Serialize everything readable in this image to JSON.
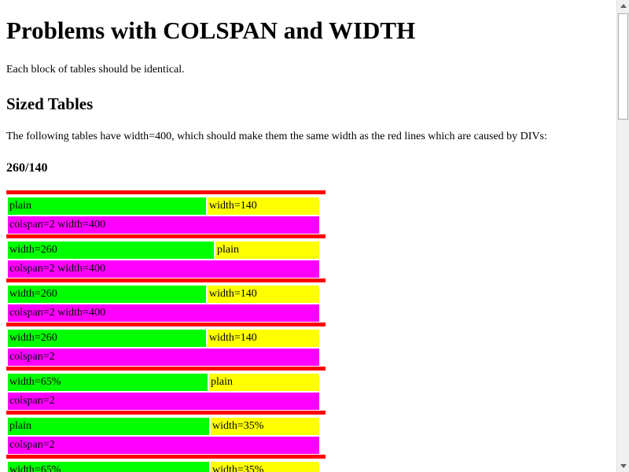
{
  "title": "Problems with COLSPAN and WIDTH",
  "intro": "Each block of tables should be identical.",
  "section_title": "Sized Tables",
  "section_desc": "The following tables have width=400, which should make them the same width as the red lines which are caused by DIVs:",
  "subsection_title": "260/140",
  "tables": [
    {
      "c1": "plain",
      "c2": "width=140",
      "span": "colspan=2 width=400"
    },
    {
      "c1": "width=260",
      "c2": "plain",
      "span": "colspan=2 width=400"
    },
    {
      "c1": "width=260",
      "c2": "width=140",
      "span": "colspan=2 width=400"
    },
    {
      "c1": "width=260",
      "c2": "width=140",
      "span": "colspan=2"
    },
    {
      "c1": "width=65%",
      "c2": "plain",
      "span": "colspan=2"
    },
    {
      "c1": "plain",
      "c2": "width=35%",
      "span": "colspan=2"
    },
    {
      "c1": "width=65%",
      "c2": "width=35%",
      "span": ""
    }
  ],
  "colors": {
    "redline": "#ff0000",
    "green": "#00ff00",
    "yellow": "#ffff00",
    "magenta": "#ff00ff"
  }
}
